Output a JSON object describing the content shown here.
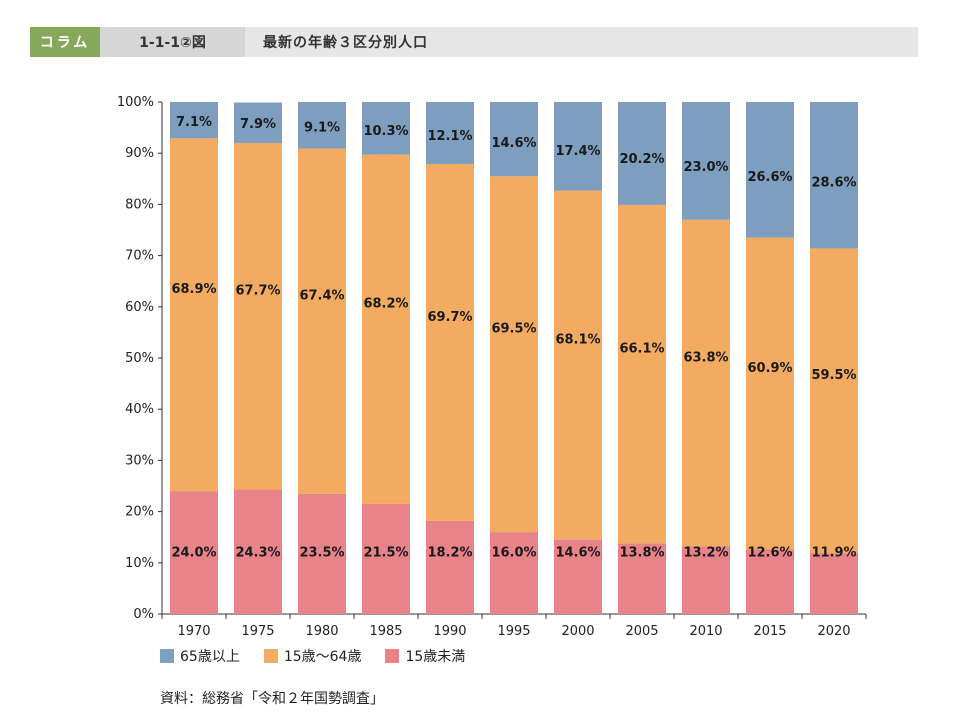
{
  "header": {
    "tag": "コラム",
    "figure_no": "1-1-1②図",
    "title": "最新の年齢３区分別人口"
  },
  "source": "資料：総務省「令和２年国勢調査」",
  "colors": {
    "age65plus": "#7e9ec0",
    "age15to64": "#f3ab62",
    "under15": "#e88489"
  },
  "chart_data": {
    "type": "bar",
    "stacked": true,
    "categories": [
      "1970",
      "1975",
      "1980",
      "1985",
      "1990",
      "1995",
      "2000",
      "2005",
      "2010",
      "2015",
      "2020"
    ],
    "ylim": [
      0,
      100
    ],
    "y_ticks": [
      "0%",
      "10%",
      "20%",
      "30%",
      "40%",
      "50%",
      "60%",
      "70%",
      "80%",
      "90%",
      "100%"
    ],
    "grid": false,
    "legend_position": "bottom-left",
    "series": [
      {
        "name": "15歳未満",
        "color_key": "under15",
        "values": [
          24.0,
          24.3,
          23.5,
          21.5,
          18.2,
          16.0,
          14.6,
          13.8,
          13.2,
          12.6,
          11.9
        ],
        "labels": [
          "24.0%",
          "24.3%",
          "23.5%",
          "21.5%",
          "18.2%",
          "16.0%",
          "14.6%",
          "13.8%",
          "13.2%",
          "12.6%",
          "11.9%"
        ]
      },
      {
        "name": "15歳～64歳",
        "color_key": "age15to64",
        "values": [
          68.9,
          67.7,
          67.4,
          68.2,
          69.7,
          69.5,
          68.1,
          66.1,
          63.8,
          60.9,
          59.5
        ],
        "labels": [
          "68.9%",
          "67.7%",
          "67.4%",
          "68.2%",
          "69.7%",
          "69.5%",
          "68.1%",
          "66.1%",
          "63.8%",
          "60.9%",
          "59.5%"
        ]
      },
      {
        "name": "65歳以上",
        "color_key": "age65plus",
        "values": [
          7.1,
          7.9,
          9.1,
          10.3,
          12.1,
          14.6,
          17.4,
          20.2,
          23.0,
          26.6,
          28.6
        ],
        "labels": [
          "7.1%",
          "7.9%",
          "9.1%",
          "10.3%",
          "12.1%",
          "14.6%",
          "17.4%",
          "20.2%",
          "23.0%",
          "26.6%",
          "28.6%"
        ]
      }
    ],
    "legend": [
      "65歳以上",
      "15歳～64歳",
      "15歳未満"
    ]
  }
}
